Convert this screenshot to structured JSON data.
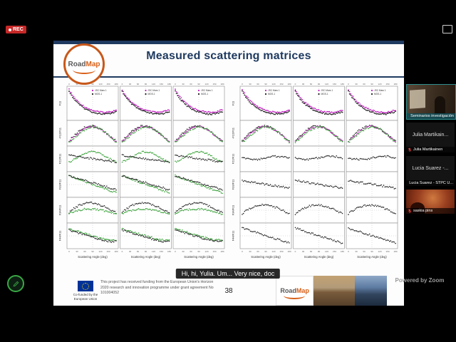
{
  "meeting": {
    "rec_label": "REC",
    "caption": "Hi, hi, Yulia. Um... Very nice, doc",
    "powered_by": "Powered by Zoom",
    "participants": [
      {
        "label": "Seminarios investigación",
        "center_name": ""
      },
      {
        "label": "Julia Martikainen",
        "center_name": "Julia Martikain..."
      },
      {
        "label": "Lucia Suarez - STPC U...",
        "center_name": "Lucia Suarez -..."
      },
      {
        "label": "saskia pins",
        "center_name": ""
      }
    ]
  },
  "slide": {
    "title": "Measured scattering matrices",
    "page_number": "38",
    "logo_road": "Road",
    "logo_map": "Map",
    "strip_logo_road": "Road",
    "strip_logo_map": "Map",
    "eu": {
      "cofund": "Co-funded by the European Union",
      "funding_text": "This project has received funding from the European Union's Horizon 2020 research and innovation programme under grant agreement No 101004052"
    }
  },
  "plots": {
    "xlabel": "Scattering Angle (deg)",
    "x_ticks": [
      "0",
      "30",
      "60",
      "90",
      "120",
      "150",
      "180"
    ],
    "row_labels": [
      "F11",
      "-F12/F11",
      "F22/F11",
      "F33/F11",
      "F34/F11",
      "F44/F11"
    ],
    "palette": {
      "magenta": "#c21fc2",
      "black": "#222222",
      "green": "#2f9e2f"
    },
    "groups": [
      {
        "id": "left",
        "legend_items": [
          {
            "color": "magenta",
            "label": "JSC Mars 1"
          },
          {
            "color": "black",
            "label": "MGS-1"
          }
        ],
        "rows": [
          {
            "shape": "f11",
            "series": [
              "magenta",
              "black"
            ]
          },
          {
            "shape": "f12",
            "series": [
              "black",
              "magenta",
              "green"
            ]
          },
          {
            "shape": "g_hump",
            "series": [
              "green",
              "black"
            ]
          },
          {
            "shape": "g_decl",
            "series": [
              "green",
              "black"
            ]
          },
          {
            "shape": "g_wave",
            "series": [
              "black",
              "green"
            ]
          },
          {
            "shape": "g_tail",
            "series": [
              "green",
              "black"
            ]
          }
        ]
      },
      {
        "id": "right",
        "legend_items": [
          {
            "color": "magenta",
            "label": "JSC Mars 1"
          },
          {
            "color": "black",
            "label": "MGS-1"
          }
        ],
        "rows": [
          {
            "shape": "f11",
            "series": [
              "magenta",
              "black"
            ]
          },
          {
            "shape": "f12",
            "series": [
              "black",
              "magenta",
              "green"
            ]
          },
          {
            "shape": "flat",
            "series": [
              "black"
            ]
          },
          {
            "shape": "f_slope",
            "series": [
              "black"
            ]
          },
          {
            "shape": "f_humpb",
            "series": [
              "black"
            ]
          },
          {
            "shape": "f_decl",
            "series": [
              "black"
            ]
          }
        ]
      }
    ]
  }
}
